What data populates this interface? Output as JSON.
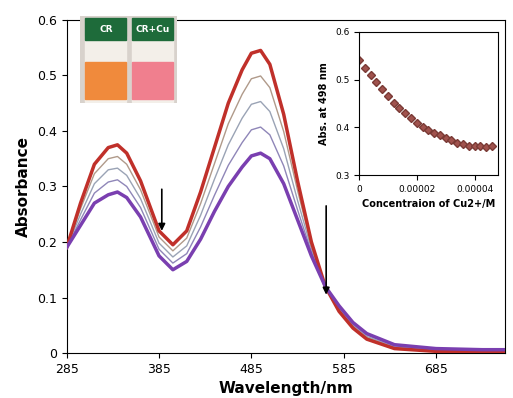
{
  "chart_data": [
    {
      "type": "line",
      "x_label": "Wavelength/nm",
      "y_label": "Absorbance",
      "x": [
        285,
        300,
        315,
        330,
        340,
        350,
        365,
        385,
        400,
        415,
        430,
        445,
        460,
        475,
        485,
        495,
        505,
        520,
        535,
        550,
        565,
        580,
        595,
        610,
        640,
        685,
        735,
        760
      ],
      "series": [
        {
          "color": "#c0302a",
          "values": [
            0.19,
            0.27,
            0.34,
            0.37,
            0.375,
            0.36,
            0.31,
            0.22,
            0.195,
            0.22,
            0.29,
            0.37,
            0.45,
            0.51,
            0.54,
            0.545,
            0.52,
            0.43,
            0.31,
            0.2,
            0.12,
            0.075,
            0.045,
            0.025,
            0.008,
            0.003,
            0.002,
            0.002
          ]
        },
        {
          "color": "#b09a8a",
          "values": [
            0.19,
            0.26,
            0.323,
            0.35,
            0.354,
            0.34,
            0.294,
            0.209,
            0.184,
            0.207,
            0.269,
            0.341,
            0.413,
            0.466,
            0.494,
            0.499,
            0.478,
            0.399,
            0.293,
            0.194,
            0.12,
            0.078,
            0.048,
            0.028,
            0.01,
            0.004,
            0.003,
            0.003
          ]
        },
        {
          "color": "#9aa3b5",
          "values": [
            0.19,
            0.25,
            0.305,
            0.33,
            0.333,
            0.32,
            0.278,
            0.198,
            0.173,
            0.193,
            0.248,
            0.313,
            0.375,
            0.423,
            0.448,
            0.453,
            0.435,
            0.368,
            0.275,
            0.188,
            0.12,
            0.08,
            0.05,
            0.03,
            0.011,
            0.005,
            0.004,
            0.004
          ]
        },
        {
          "color": "#8f86b8",
          "values": [
            0.19,
            0.24,
            0.288,
            0.308,
            0.312,
            0.3,
            0.262,
            0.187,
            0.162,
            0.179,
            0.227,
            0.284,
            0.338,
            0.379,
            0.402,
            0.407,
            0.393,
            0.337,
            0.258,
            0.182,
            0.12,
            0.083,
            0.053,
            0.033,
            0.013,
            0.007,
            0.005,
            0.005
          ]
        },
        {
          "color": "#7a3fb0",
          "values": [
            0.19,
            0.23,
            0.27,
            0.285,
            0.29,
            0.28,
            0.245,
            0.175,
            0.15,
            0.165,
            0.205,
            0.255,
            0.3,
            0.335,
            0.355,
            0.36,
            0.35,
            0.305,
            0.24,
            0.175,
            0.12,
            0.085,
            0.055,
            0.035,
            0.015,
            0.008,
            0.006,
            0.006
          ]
        }
      ],
      "xlim": [
        285,
        760
      ],
      "xticks": [
        285,
        385,
        485,
        585,
        685
      ],
      "ylim": [
        0,
        0.6
      ],
      "yticks": [
        0,
        0.1,
        0.2,
        0.3,
        0.4,
        0.5,
        0.6
      ],
      "annotations": [
        "CR",
        "CR+Cu"
      ]
    },
    {
      "type": "scatter",
      "x_label": "Concentraion of Cu2+/M",
      "y_label": "Abs. at 498 nm",
      "x": [
        0,
        2e-06,
        4e-06,
        6e-06,
        8e-06,
        1e-05,
        1.2e-05,
        1.4e-05,
        1.6e-05,
        1.8e-05,
        2e-05,
        2.2e-05,
        2.4e-05,
        2.6e-05,
        2.8e-05,
        3e-05,
        3.2e-05,
        3.4e-05,
        3.6e-05,
        3.8e-05,
        4e-05,
        4.2e-05,
        4.4e-05,
        4.6e-05
      ],
      "values": [
        0.54,
        0.525,
        0.51,
        0.495,
        0.48,
        0.466,
        0.452,
        0.44,
        0.43,
        0.42,
        0.41,
        0.4,
        0.395,
        0.388,
        0.383,
        0.378,
        0.373,
        0.368,
        0.365,
        0.362,
        0.36,
        0.36,
        0.358,
        0.36
      ],
      "color": "#a0524d",
      "marker": "diamond",
      "xlim": [
        0,
        4.8e-05
      ],
      "xticks": [
        0,
        {
          "value": 2e-05,
          "label": "0.00002"
        },
        {
          "value": 4e-05,
          "label": "0.00004"
        }
      ],
      "ylim": [
        0.3,
        0.6
      ],
      "yticks": [
        0.3,
        0.4,
        0.5,
        0.6
      ]
    }
  ]
}
